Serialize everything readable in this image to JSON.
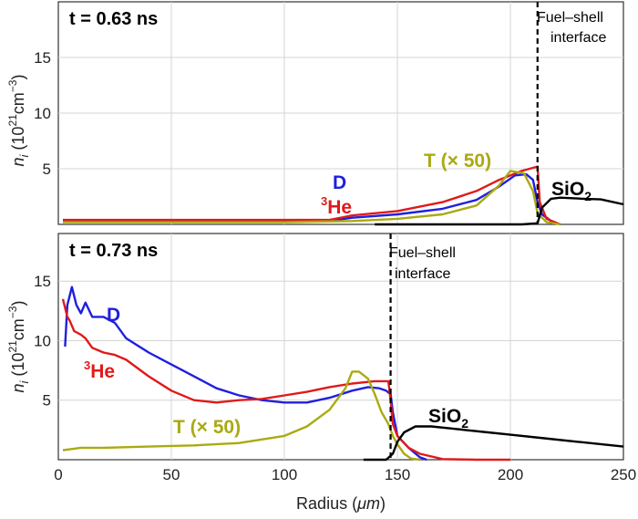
{
  "chart_data": [
    {
      "type": "line",
      "panel": "top",
      "time_label": "t = 0.63 ns",
      "interface_x": 212,
      "interface_label": [
        "Fuel–shell",
        "interface"
      ],
      "xlim": [
        0,
        250
      ],
      "ylim": [
        0,
        20
      ],
      "yticks": [
        "5",
        "10",
        "15"
      ],
      "ytick_values": [
        5,
        10,
        15
      ],
      "xticks": [
        0,
        50,
        100,
        150,
        200,
        250
      ],
      "grid": true,
      "series": [
        {
          "name": "D",
          "color": "#1f1fe0",
          "points": [
            [
              2,
              0.3
            ],
            [
              60,
              0.3
            ],
            [
              100,
              0.3
            ],
            [
              120,
              0.3
            ],
            [
              130,
              0.6
            ],
            [
              150,
              0.9
            ],
            [
              170,
              1.4
            ],
            [
              185,
              2.2
            ],
            [
              195,
              3.4
            ],
            [
              202,
              4.4
            ],
            [
              207,
              4.5
            ],
            [
              210,
              4.0
            ],
            [
              212,
              2.0
            ],
            [
              214,
              0.9
            ],
            [
              220,
              0.0
            ]
          ]
        },
        {
          "name": "³He",
          "color": "#e01a1a",
          "points": [
            [
              2,
              0.4
            ],
            [
              60,
              0.4
            ],
            [
              100,
              0.4
            ],
            [
              120,
              0.4
            ],
            [
              130,
              0.8
            ],
            [
              150,
              1.2
            ],
            [
              170,
              2.0
            ],
            [
              185,
              3.0
            ],
            [
              195,
              4.0
            ],
            [
              205,
              4.8
            ],
            [
              212,
              5.2
            ],
            [
              213,
              2.0
            ],
            [
              216,
              0.5
            ],
            [
              222,
              0.0
            ]
          ]
        },
        {
          "name": "T (× 50)",
          "color": "#aaaa12",
          "points": [
            [
              2,
              0.2
            ],
            [
              100,
              0.2
            ],
            [
              130,
              0.3
            ],
            [
              150,
              0.5
            ],
            [
              170,
              0.9
            ],
            [
              185,
              1.7
            ],
            [
              195,
              3.5
            ],
            [
              200,
              4.8
            ],
            [
              206,
              4.6
            ],
            [
              210,
              3.0
            ],
            [
              212,
              1.0
            ],
            [
              216,
              0.2
            ],
            [
              222,
              0.0
            ]
          ]
        },
        {
          "name": "SiO₂",
          "color": "#000000",
          "points": [
            [
              140,
              0.0
            ],
            [
              205,
              0.0
            ],
            [
              212,
              0.1
            ],
            [
              214,
              1.5
            ],
            [
              218,
              2.3
            ],
            [
              222,
              2.4
            ],
            [
              232,
              2.3
            ],
            [
              240,
              2.25
            ],
            [
              250,
              1.8
            ]
          ]
        }
      ],
      "labels": {
        "D": "D",
        "He": "³He",
        "T": "T (× 50)",
        "SiO2": "SiO₂"
      }
    },
    {
      "type": "line",
      "panel": "bottom",
      "time_label": "t = 0.73 ns",
      "interface_x": 147,
      "interface_label": [
        "Fuel–shell",
        "interface"
      ],
      "xlim": [
        0,
        250
      ],
      "ylim": [
        0,
        19
      ],
      "yticks": [
        "5",
        "10",
        "15"
      ],
      "ytick_values": [
        5,
        10,
        15
      ],
      "xticks": [
        "0",
        "50",
        "100",
        "150",
        "200",
        "250"
      ],
      "xtick_values": [
        0,
        50,
        100,
        150,
        200,
        250
      ],
      "xlabel": "Radius (μm)",
      "grid": true,
      "series": [
        {
          "name": "D",
          "color": "#1f1fe0",
          "points": [
            [
              3,
              9.5
            ],
            [
              4,
              13
            ],
            [
              6,
              14.5
            ],
            [
              8,
              13
            ],
            [
              10,
              12.3
            ],
            [
              12,
              13.2
            ],
            [
              15,
              12
            ],
            [
              20,
              12
            ],
            [
              25,
              11.5
            ],
            [
              30,
              10.2
            ],
            [
              40,
              9
            ],
            [
              50,
              8
            ],
            [
              60,
              7
            ],
            [
              70,
              6
            ],
            [
              80,
              5.4
            ],
            [
              90,
              5
            ],
            [
              100,
              4.8
            ],
            [
              110,
              4.8
            ],
            [
              120,
              5.2
            ],
            [
              130,
              5.8
            ],
            [
              137,
              6.1
            ],
            [
              142,
              6
            ],
            [
              145,
              5.8
            ],
            [
              147,
              5.5
            ],
            [
              148,
              4
            ],
            [
              150,
              2
            ],
            [
              155,
              1
            ],
            [
              160,
              0.2
            ],
            [
              163,
              0
            ]
          ]
        },
        {
          "name": "³He",
          "color": "#e01a1a",
          "points": [
            [
              2,
              13.5
            ],
            [
              4,
              12
            ],
            [
              5,
              11.7
            ],
            [
              7,
              10.8
            ],
            [
              10,
              10.5
            ],
            [
              12,
              10.2
            ],
            [
              15,
              9.4
            ],
            [
              20,
              9
            ],
            [
              25,
              8.8
            ],
            [
              30,
              8.4
            ],
            [
              40,
              7
            ],
            [
              50,
              5.8
            ],
            [
              60,
              5
            ],
            [
              70,
              4.8
            ],
            [
              80,
              5
            ],
            [
              90,
              5.1
            ],
            [
              100,
              5.4
            ],
            [
              110,
              5.7
            ],
            [
              120,
              6.1
            ],
            [
              130,
              6.4
            ],
            [
              140,
              6.6
            ],
            [
              146,
              6.6
            ],
            [
              147,
              5
            ],
            [
              148,
              3
            ],
            [
              150,
              2
            ],
            [
              155,
              1
            ],
            [
              160,
              0.5
            ],
            [
              170,
              0.05
            ],
            [
              185,
              0
            ],
            [
              200,
              0
            ]
          ]
        },
        {
          "name": "T (× 50)",
          "color": "#aaaa12",
          "points": [
            [
              2,
              0.8
            ],
            [
              10,
              1.0
            ],
            [
              20,
              1.0
            ],
            [
              40,
              1.1
            ],
            [
              60,
              1.2
            ],
            [
              80,
              1.4
            ],
            [
              100,
              2.0
            ],
            [
              110,
              2.8
            ],
            [
              120,
              4.2
            ],
            [
              127,
              6.0
            ],
            [
              130,
              7.4
            ],
            [
              133,
              7.4
            ],
            [
              137,
              6.8
            ],
            [
              140,
              5.5
            ],
            [
              143,
              4
            ],
            [
              146,
              3
            ],
            [
              148,
              2
            ],
            [
              150,
              1.3
            ],
            [
              153,
              0.5
            ],
            [
              156,
              0.1
            ],
            [
              160,
              0
            ]
          ]
        },
        {
          "name": "SiO₂",
          "color": "#000000",
          "points": [
            [
              135,
              0
            ],
            [
              145,
              0
            ],
            [
              148,
              0.5
            ],
            [
              150,
              1.5
            ],
            [
              153,
              2.3
            ],
            [
              158,
              2.8
            ],
            [
              165,
              2.8
            ],
            [
              175,
              2.6
            ],
            [
              190,
              2.3
            ],
            [
              200,
              2.1
            ],
            [
              215,
              1.8
            ],
            [
              230,
              1.5
            ],
            [
              250,
              1.1
            ]
          ]
        }
      ],
      "labels": {
        "D": "D",
        "He": "³He",
        "T": "T (× 50)",
        "SiO2": "SiO₂"
      }
    }
  ],
  "ylabel_prefix": "n",
  "ylabel_sub": "i",
  "ylabel_units": "(10²¹cm⁻³)",
  "ylabel_base": "(10",
  "ylabel_exp1": "21",
  "ylabel_mid": "cm",
  "ylabel_exp2": "−3",
  "ylabel_close": ")",
  "xlabel_text": "Radius (",
  "xlabel_mu": "μm",
  "xlabel_close": ")"
}
